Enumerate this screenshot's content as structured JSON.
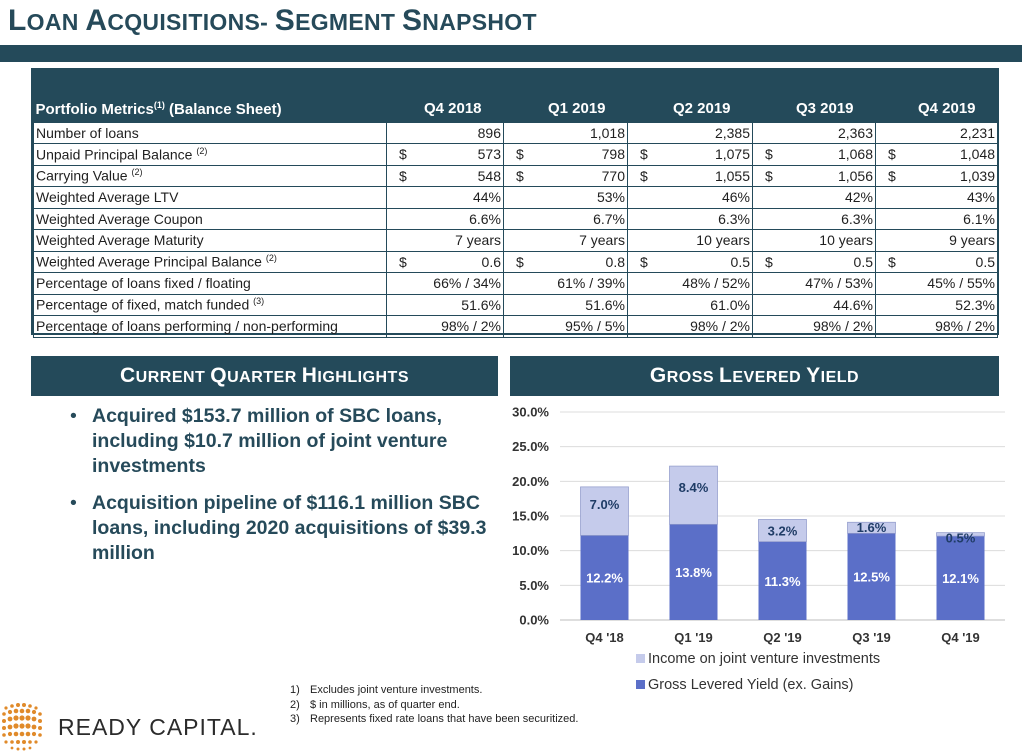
{
  "page": {
    "title": "Loan Acquisitions- Segment Snapshot"
  },
  "table": {
    "header_label": "Portfolio Metrics",
    "header_sup": "(1)",
    "header_suffix": " (Balance Sheet)",
    "quarters": [
      "Q4 2018",
      "Q1 2019",
      "Q2 2019",
      "Q3 2019",
      "Q4 2019"
    ],
    "rows": [
      {
        "label": "Number of loans",
        "sup": "",
        "dollar": false,
        "values": [
          "896",
          "1,018",
          "2,385",
          "2,363",
          "2,231"
        ]
      },
      {
        "label": "Unpaid Principal Balance ",
        "sup": "(2)",
        "dollar": true,
        "values": [
          "573",
          "798",
          "1,075",
          "1,068",
          "1,048"
        ]
      },
      {
        "label": "Carrying Value ",
        "sup": "(2)",
        "dollar": true,
        "values": [
          "548",
          "770",
          "1,055",
          "1,056",
          "1,039"
        ]
      },
      {
        "label": "Weighted Average LTV",
        "sup": "",
        "dollar": false,
        "values": [
          "44%",
          "53%",
          "46%",
          "42%",
          "43%"
        ]
      },
      {
        "label": "Weighted Average Coupon",
        "sup": "",
        "dollar": false,
        "values": [
          "6.6%",
          "6.7%",
          "6.3%",
          "6.3%",
          "6.1%"
        ]
      },
      {
        "label": "Weighted Average Maturity",
        "sup": "",
        "dollar": false,
        "values": [
          "7 years",
          "7 years",
          "10 years",
          "10 years",
          "9 years"
        ]
      },
      {
        "label": "Weighted Average Principal Balance ",
        "sup": "(2)",
        "dollar": true,
        "values": [
          "0.6",
          "0.8",
          "0.5",
          "0.5",
          "0.5"
        ]
      },
      {
        "label": "Percentage of loans fixed / floating",
        "sup": "",
        "dollar": false,
        "values": [
          "66% / 34%",
          "61% / 39%",
          "48% / 52%",
          "47% / 53%",
          "45% / 55%"
        ]
      },
      {
        "label": "Percentage of fixed, match funded ",
        "sup": "(3)",
        "dollar": false,
        "values": [
          "51.6%",
          "51.6%",
          "61.0%",
          "44.6%",
          "52.3%"
        ]
      },
      {
        "label": "Percentage of loans performing / non-performing",
        "sup": "",
        "dollar": false,
        "values": [
          "98% / 2%",
          "95% / 5%",
          "98% / 2%",
          "98% / 2%",
          "98% / 2%"
        ]
      }
    ],
    "dollar_sign": "$"
  },
  "highlights": {
    "title": "Current Quarter Highlights",
    "bullet_glyph": "•",
    "items": [
      "Acquired $153.7 million of SBC loans, including $10.7 million of joint venture investments",
      "Acquisition pipeline of $116.1 million SBC loans, including 2020 acquisitions of $39.3 million"
    ]
  },
  "chart_title": "Gross Levered Yield",
  "chart_data": {
    "type": "bar",
    "stacked": true,
    "categories": [
      "Q4 '18",
      "Q1 '19",
      "Q2 '19",
      "Q3 '19",
      "Q4 '19"
    ],
    "series": [
      {
        "name": "Gross Levered Yield (ex. Gains)",
        "values": [
          12.2,
          13.8,
          11.3,
          12.5,
          12.1
        ],
        "labels": [
          "12.2%",
          "13.8%",
          "11.3%",
          "12.5%",
          "12.1%"
        ],
        "color": "#5b6fc8"
      },
      {
        "name": "Income on joint venture investments",
        "values": [
          7.0,
          8.4,
          3.2,
          1.6,
          0.5
        ],
        "labels": [
          "7.0%",
          "8.4%",
          "3.2%",
          "1.6%",
          "0.5%"
        ],
        "color": "#c5cbeb"
      }
    ],
    "ylim": [
      0,
      30
    ],
    "yticks": [
      0,
      5,
      10,
      15,
      20,
      25,
      30
    ],
    "ytick_labels": [
      "0.0%",
      "5.0%",
      "10.0%",
      "15.0%",
      "20.0%",
      "25.0%",
      "30.0%"
    ],
    "grid": true,
    "legend_position": "bottom",
    "legend_order": [
      1,
      0
    ]
  },
  "footnotes": [
    {
      "num": "1)",
      "text": "Excludes joint venture investments."
    },
    {
      "num": "2)",
      "text": "$ in millions, as of quarter end."
    },
    {
      "num": "3)",
      "text": "Represents fixed rate loans that have been securitized."
    }
  ],
  "logo": {
    "text": "READY CAPITAL."
  }
}
